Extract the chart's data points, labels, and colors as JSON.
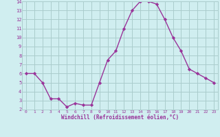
{
  "x": [
    0,
    1,
    2,
    3,
    4,
    5,
    6,
    7,
    8,
    9,
    10,
    11,
    12,
    13,
    14,
    15,
    16,
    17,
    18,
    19,
    20,
    21,
    22,
    23
  ],
  "y": [
    6.0,
    6.0,
    5.0,
    3.2,
    3.2,
    2.3,
    2.7,
    2.5,
    2.5,
    5.0,
    7.5,
    8.5,
    11.0,
    13.0,
    14.0,
    14.0,
    13.7,
    12.0,
    10.0,
    8.5,
    6.5,
    6.0,
    5.5,
    5.0
  ],
  "line_color": "#993399",
  "marker_color": "#993399",
  "bg_color": "#d0eef0",
  "grid_color": "#aacccc",
  "xlabel": "Windchill (Refroidissement éolien,°C)",
  "xlabel_color": "#993399",
  "tick_color": "#993399",
  "xlim": [
    -0.5,
    23.5
  ],
  "ylim": [
    2,
    14
  ],
  "yticks": [
    2,
    3,
    4,
    5,
    6,
    7,
    8,
    9,
    10,
    11,
    12,
    13,
    14
  ],
  "xticks": [
    0,
    1,
    2,
    3,
    4,
    5,
    6,
    7,
    8,
    9,
    10,
    11,
    12,
    13,
    14,
    15,
    16,
    17,
    18,
    19,
    20,
    21,
    22,
    23
  ]
}
